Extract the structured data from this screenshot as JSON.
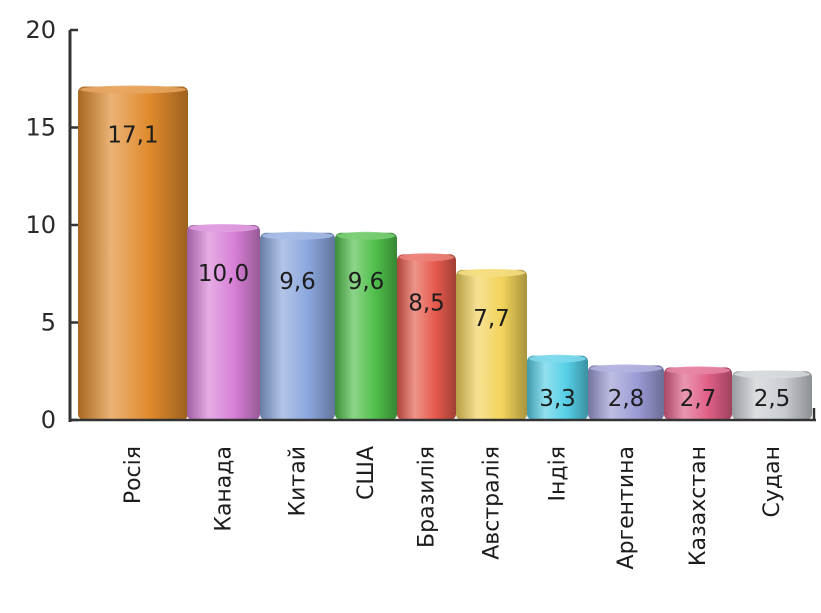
{
  "chart_data": {
    "type": "bar",
    "categories": [
      "Росія",
      "Канада",
      "Китай",
      "США",
      "Бразилія",
      "Австралія",
      "Індія",
      "Аргентина",
      "Казахстан",
      "Судан"
    ],
    "values": [
      17.1,
      10.0,
      9.6,
      9.6,
      8.5,
      7.7,
      3.3,
      2.8,
      2.7,
      2.5
    ],
    "value_labels": [
      "17,1",
      "10,0",
      "9,6",
      "9,6",
      "8,5",
      "7,7",
      "3,3",
      "2,8",
      "2,7",
      "2,5"
    ],
    "colors": [
      "#e08a2c",
      "#d77fd6",
      "#8aa6dd",
      "#4fbf4a",
      "#e65a4d",
      "#f2d35a",
      "#55cfe6",
      "#9b9bd6",
      "#e05f86",
      "#c9cdd2"
    ],
    "y_ticks": [
      0,
      5,
      10,
      15,
      20
    ],
    "ylim": [
      0,
      20
    ],
    "grid": false,
    "title": "",
    "xlabel": "",
    "ylabel": ""
  }
}
